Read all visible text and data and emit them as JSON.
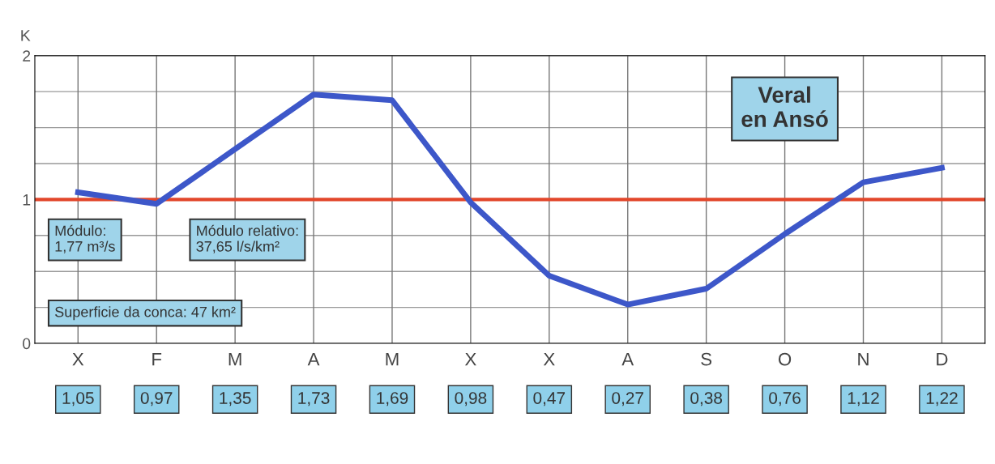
{
  "chart_data": {
    "type": "line",
    "ylabel": "K",
    "categories": [
      "X",
      "F",
      "M",
      "A",
      "M",
      "X",
      "X",
      "A",
      "S",
      "O",
      "N",
      "D"
    ],
    "series": [
      {
        "color": "#3d57c9",
        "values": [
          1.05,
          0.97,
          1.35,
          1.73,
          1.69,
          0.98,
          0.47,
          0.27,
          0.38,
          0.76,
          1.12,
          1.22
        ],
        "value_labels": [
          "1,05",
          "0,97",
          "1,35",
          "1,73",
          "1,69",
          "0,98",
          "0,47",
          "0,27",
          "0,38",
          "0,76",
          "1,12",
          "1,22"
        ]
      }
    ],
    "ylim": [
      0,
      2
    ],
    "yticks": [
      0,
      {
        "value": 0.25,
        "label": null
      },
      {
        "value": 0.5,
        "label": null
      },
      {
        "value": 0.75,
        "label": null
      },
      1,
      {
        "value": 1.25,
        "label": null
      },
      {
        "value": 1.5,
        "label": null
      },
      {
        "value": 1.75,
        "label": null
      },
      2
    ],
    "ref_lines": [
      {
        "axis": "y",
        "value": 1,
        "color": "#e2472b"
      }
    ],
    "annotations": [
      "Veral\nen Ansó",
      "Módulo:\n1,77 m³/s",
      "Módulo relativo:\n37,65 l/s/km²",
      "Superficie da conca: 47 km²"
    ],
    "grid": true,
    "legend": false,
    "marker": "none",
    "line_style": "solid"
  }
}
